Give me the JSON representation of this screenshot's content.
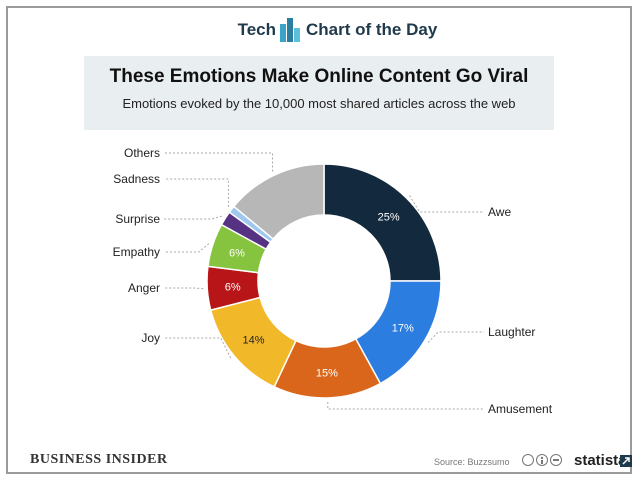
{
  "header": {
    "left_label": "Tech",
    "right_label": "Chart of the Day"
  },
  "chart_data": {
    "type": "pie",
    "style": "donut",
    "title": "These Emotions Make Online Content Go Viral",
    "subtitle": "Emotions evoked by the 10,000 most shared articles across the web",
    "slices": [
      {
        "label": "Awe",
        "value": 25,
        "value_label": "25%",
        "color": "#132a3e",
        "label_color": "#ffffff"
      },
      {
        "label": "Laughter",
        "value": 17,
        "value_label": "17%",
        "color": "#2b7de0",
        "label_color": "#ffffff"
      },
      {
        "label": "Amusement",
        "value": 15,
        "value_label": "15%",
        "color": "#d9661a",
        "label_color": "#ffffff"
      },
      {
        "label": "Joy",
        "value": 14,
        "value_label": "14%",
        "color": "#f1b82a",
        "label_color": "#222222"
      },
      {
        "label": "Anger",
        "value": 6,
        "value_label": "6%",
        "color": "#b81518",
        "label_color": "#ffffff"
      },
      {
        "label": "Empathy",
        "value": 6,
        "value_label": "6%",
        "color": "#86c440",
        "label_color": "#ffffff"
      },
      {
        "label": "Surprise",
        "value": 2,
        "value_label": "",
        "color": "#563282",
        "label_color": "#ffffff"
      },
      {
        "label": "Sadness",
        "value": 1,
        "value_label": "",
        "color": "#9fc8ef",
        "label_color": "#ffffff"
      },
      {
        "label": "Others",
        "value": 14,
        "value_label": "",
        "color": "#b7b7b7",
        "label_color": "#ffffff"
      }
    ],
    "legend": "callout labels around ring"
  },
  "footer": {
    "publisher": "BUSINESS INSIDER",
    "source": "Source: Buzzsumo",
    "brand": "statista"
  }
}
